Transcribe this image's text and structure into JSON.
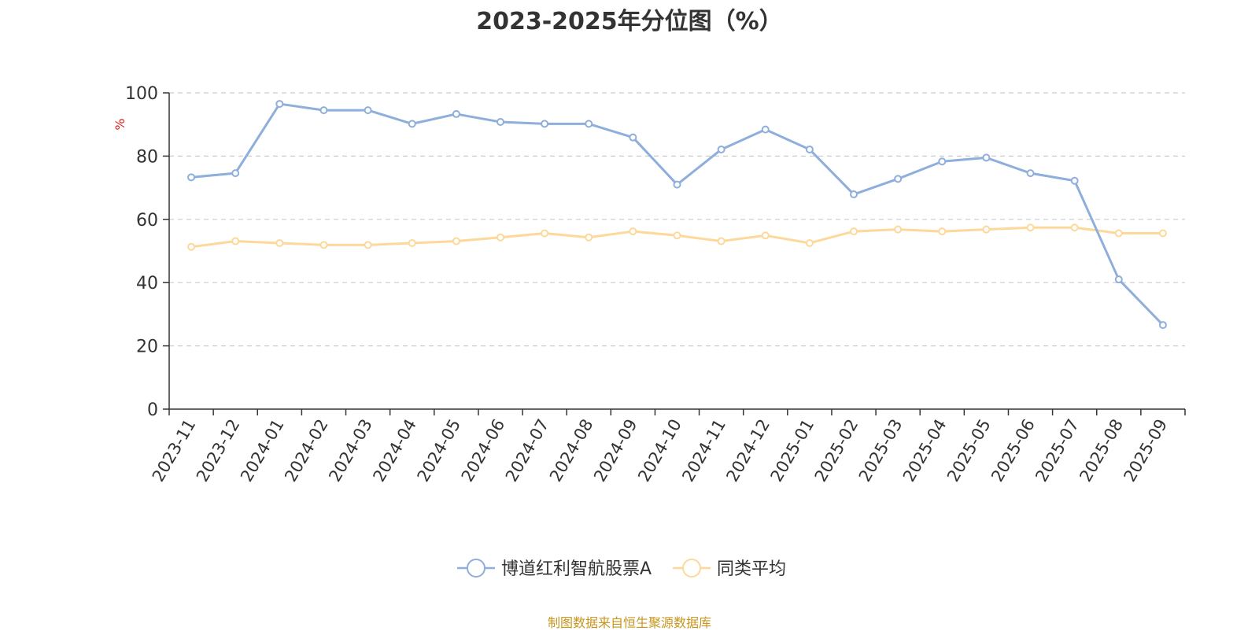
{
  "chart_data": {
    "type": "line",
    "title": "2023-2025年分位图（%）",
    "ylabel": "%",
    "ylim": [
      0,
      100
    ],
    "yticks": [
      "0",
      "20",
      "40",
      "60",
      "80",
      "100"
    ],
    "grid": true,
    "legend_position": "bottom",
    "categories": [
      "2023-11",
      "2023-12",
      "2024-01",
      "2024-02",
      "2024-03",
      "2024-04",
      "2024-05",
      "2024-06",
      "2024-07",
      "2024-08",
      "2024-09",
      "2024-10",
      "2024-11",
      "2024-12",
      "2025-01",
      "2025-02",
      "2025-03",
      "2025-04",
      "2025-05",
      "2025-06",
      "2025-07",
      "2025-08",
      "2025-09"
    ],
    "series": [
      {
        "name": "博道红利智航股票A",
        "color": "#8eaedb",
        "values": [
          73.3,
          74.6,
          96.5,
          94.5,
          94.5,
          90.2,
          93.3,
          90.8,
          90.2,
          90.2,
          85.9,
          71.0,
          82.1,
          88.4,
          82.1,
          67.9,
          72.8,
          78.3,
          79.5,
          74.6,
          72.2,
          41.0,
          26.6
        ]
      },
      {
        "name": "同类平均",
        "color": "#fdd89a",
        "values": [
          51.3,
          53.1,
          52.5,
          51.9,
          51.9,
          52.5,
          53.1,
          54.3,
          55.6,
          54.3,
          56.2,
          54.9,
          53.1,
          54.9,
          52.5,
          56.2,
          56.8,
          56.2,
          56.8,
          57.4,
          57.4,
          55.6,
          55.6
        ]
      }
    ]
  },
  "footer": {
    "source": "制图数据来自恒生聚源数据库"
  }
}
